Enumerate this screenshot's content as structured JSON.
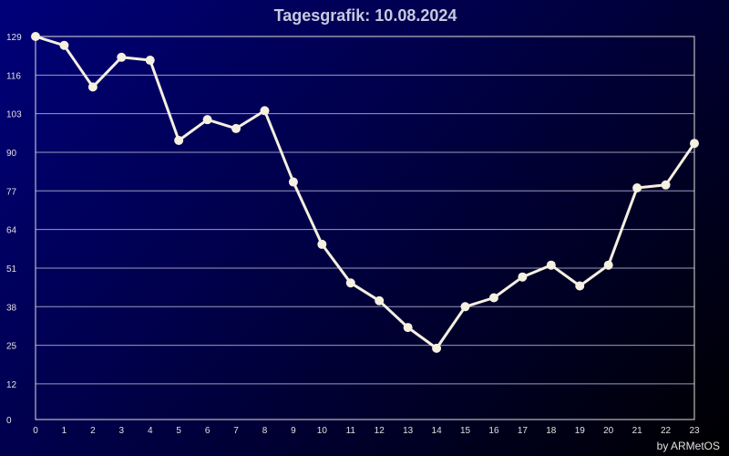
{
  "chart_data": {
    "type": "line",
    "title": "Tagesgrafik: 10.08.2024",
    "x": [
      0,
      1,
      2,
      3,
      4,
      5,
      6,
      7,
      8,
      9,
      10,
      11,
      12,
      13,
      14,
      15,
      16,
      17,
      18,
      19,
      20,
      21,
      22,
      23
    ],
    "series": [
      {
        "values": [
          129,
          126,
          112,
          122,
          121,
          94,
          101,
          98,
          104,
          80,
          59,
          46,
          40,
          31,
          24,
          38,
          41,
          48,
          52,
          45,
          52,
          78,
          79,
          93
        ]
      }
    ],
    "yticks": [
      0,
      12,
      25,
      38,
      51,
      64,
      77,
      90,
      103,
      116,
      129
    ],
    "xticks": [
      "0",
      "1",
      "2",
      "3",
      "4",
      "5",
      "6",
      "7",
      "8",
      "9",
      "10",
      "11",
      "12",
      "13",
      "14",
      "15",
      "16",
      "17",
      "18",
      "19",
      "20",
      "21",
      "22",
      "23"
    ],
    "ylim": [
      0,
      129
    ],
    "grid": true,
    "colors": {
      "line": "#f5f0e0",
      "grid": "#9a9ac0",
      "frame": "#e0e0e0"
    }
  },
  "credit": "by ARMetOS"
}
